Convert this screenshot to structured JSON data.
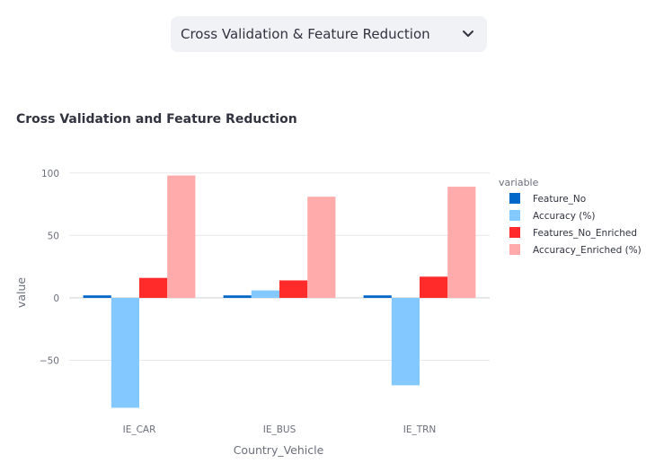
{
  "selector": {
    "selected": "Cross Validation & Feature Reduction"
  },
  "chart_data": {
    "type": "bar",
    "title": "Cross Validation and Feature Reduction",
    "xlabel": "Country_Vehicle",
    "ylabel": "value",
    "categories": [
      "IE_CAR",
      "IE_BUS",
      "IE_TRN"
    ],
    "ylim": [
      -92,
      102
    ],
    "yticks": [
      100,
      50,
      0,
      -50
    ],
    "ytick_labels": [
      "100",
      "50",
      "0",
      "−50"
    ],
    "legend_title": "variable",
    "legend_position": "right",
    "grid": true,
    "series": [
      {
        "name": "Feature_No",
        "color": "#0068c9",
        "values": [
          2,
          2,
          2
        ]
      },
      {
        "name": "Accuracy (%)",
        "color": "#83c9ff",
        "values": [
          -88,
          6,
          -70
        ]
      },
      {
        "name": "Features_No_Enriched",
        "color": "#ff2b2b",
        "values": [
          16,
          14,
          17
        ]
      },
      {
        "name": "Accuracy_Enriched (%)",
        "color": "#ffabab",
        "values": [
          98,
          81,
          89
        ]
      }
    ]
  }
}
